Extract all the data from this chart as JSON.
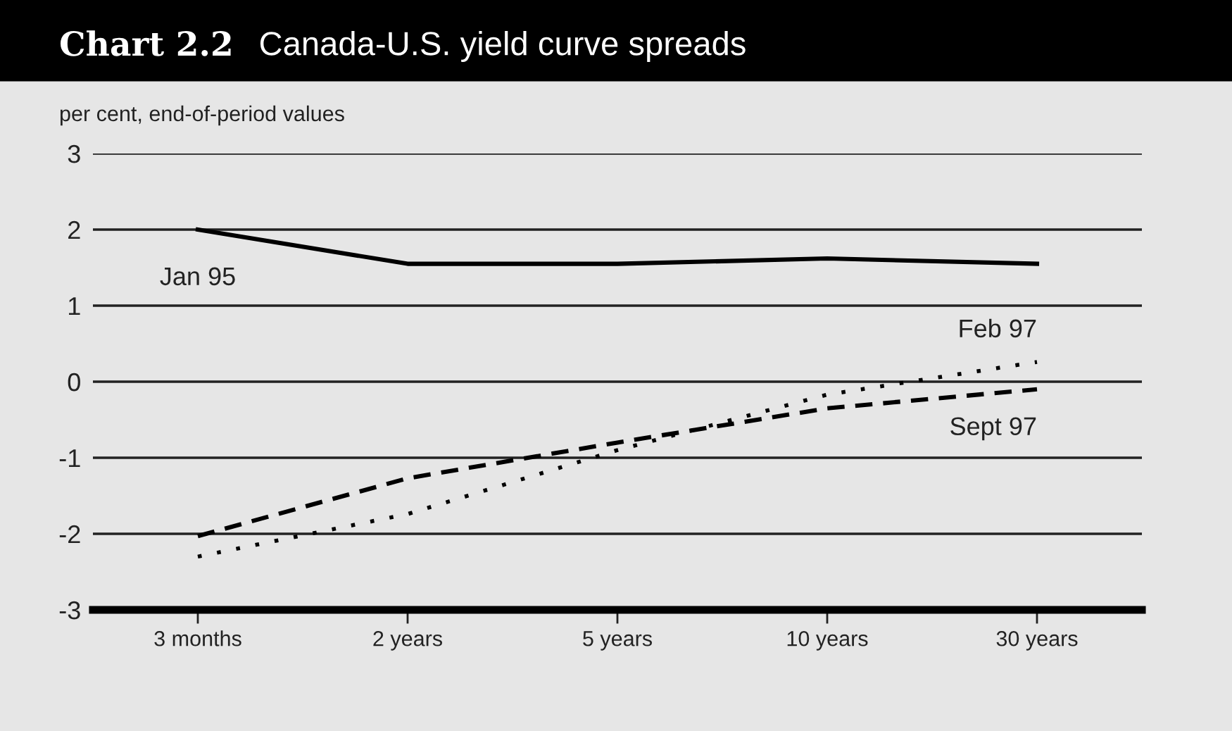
{
  "chart_data": {
    "type": "line",
    "title": "Chart 2.2",
    "subtitle": "Canada-U.S. yield curve spreads",
    "ylabel": "per cent, end-of-period values",
    "categories": [
      "3 months",
      "2 years",
      "5 years",
      "10 years",
      "30 years"
    ],
    "series": [
      {
        "name": "Jan 95",
        "color": "#000000",
        "line_style": "solid",
        "values": [
          2.0,
          1.55,
          1.55,
          1.62,
          1.55
        ]
      },
      {
        "name": "Feb 97",
        "color": "#000000",
        "line_style": "dotted",
        "values": [
          -2.3,
          -1.74,
          -0.9,
          -0.17,
          0.26
        ]
      },
      {
        "name": "Sept 97",
        "color": "#000000",
        "line_style": "dashed",
        "values": [
          -2.03,
          -1.27,
          -0.8,
          -0.35,
          -0.1
        ]
      }
    ],
    "ylim": [
      -3,
      3
    ],
    "yticks": [
      -3,
      -2,
      -1,
      0,
      1,
      2,
      3
    ],
    "grid": "y",
    "legend": false
  }
}
